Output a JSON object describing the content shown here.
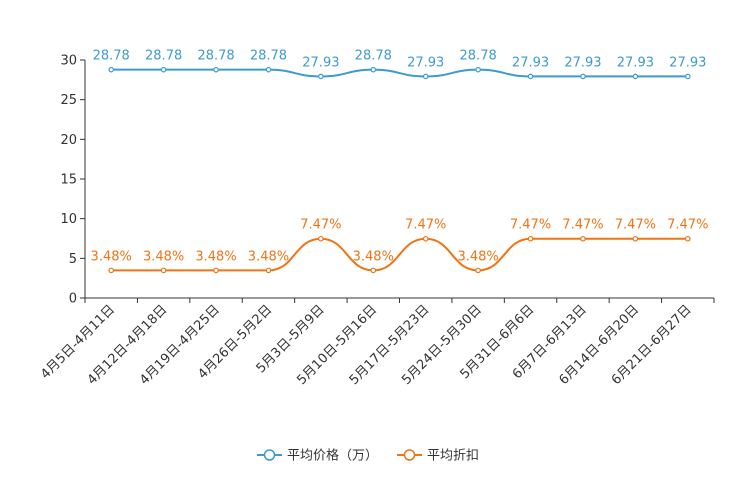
{
  "chart_data": {
    "type": "line",
    "title": "",
    "xlabel": "",
    "ylabel": "",
    "ylim": [
      0,
      30
    ],
    "yticks": [
      0,
      5,
      10,
      15,
      20,
      25,
      30
    ],
    "grid": false,
    "legend_position": "bottom-center",
    "categories": [
      "4月5日-4月11日",
      "4月12日-4月18日",
      "4月19日-4月25日",
      "4月26日-5月2日",
      "5月3日-5月9日",
      "5月10日-5月16日",
      "5月17日-5月23日",
      "5月24日-5月30日",
      "5月31日-6月6日",
      "6月7日-6月13日",
      "6月14日-6月20日",
      "6月21日-6月27日"
    ],
    "series": [
      {
        "name": "平均价格（万）",
        "color": "#3c9bd0",
        "values": [
          28.78,
          28.78,
          28.78,
          28.78,
          27.93,
          28.78,
          27.93,
          28.78,
          27.93,
          27.93,
          27.93,
          27.93
        ],
        "labels": [
          "28.78",
          "28.78",
          "28.78",
          "28.78",
          "27.93",
          "28.78",
          "27.93",
          "28.78",
          "27.93",
          "27.93",
          "27.93",
          "27.93"
        ]
      },
      {
        "name": "平均折扣",
        "color": "#f07416",
        "values": [
          3.48,
          3.48,
          3.48,
          3.48,
          7.47,
          3.48,
          7.47,
          3.48,
          7.47,
          7.47,
          7.47,
          7.47
        ],
        "labels": [
          "3.48%",
          "3.48%",
          "3.48%",
          "3.48%",
          "7.47%",
          "3.48%",
          "7.47%",
          "3.48%",
          "7.47%",
          "7.47%",
          "7.47%",
          "7.47%"
        ]
      }
    ]
  }
}
